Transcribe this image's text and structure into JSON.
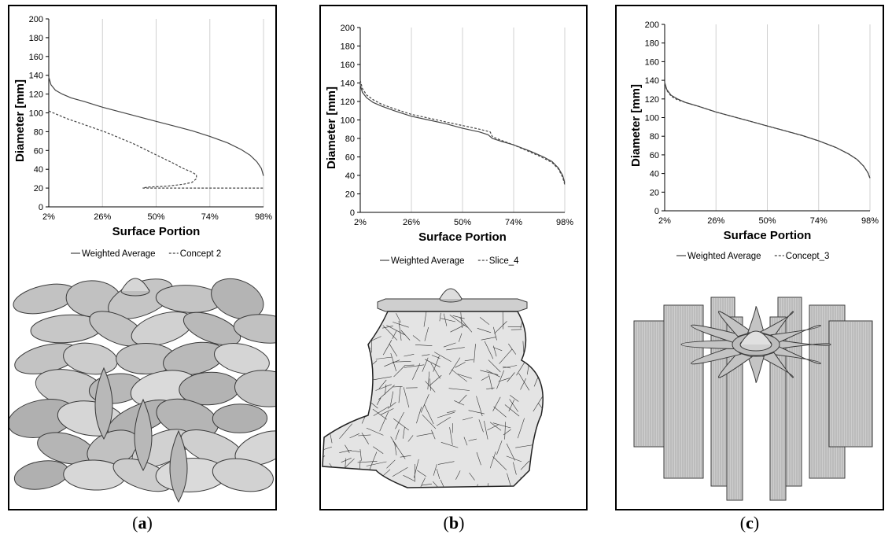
{
  "captions": [
    {
      "open": "(",
      "letter": "a",
      "close": ")"
    },
    {
      "open": "(",
      "letter": "b",
      "close": ")"
    },
    {
      "open": "(",
      "letter": "c",
      "close": ")"
    }
  ],
  "colors": {
    "line": "#444444",
    "grid": "#d0d0d0",
    "axis": "#000000",
    "render_fill": "#c9c9c9",
    "render_edge": "#3a3a3a"
  },
  "chart_data": [
    {
      "type": "line",
      "title": "",
      "xlabel": "Surface Portion",
      "ylabel": "Diameter [mm]",
      "x_ticks": [
        "2%",
        "26%",
        "50%",
        "74%",
        "98%"
      ],
      "x_range": [
        2,
        98
      ],
      "ylim": [
        0,
        200
      ],
      "y_ticks": [
        0,
        20,
        40,
        60,
        80,
        100,
        120,
        140,
        160,
        180,
        200
      ],
      "grid": "vertical",
      "legend_position": "bottom",
      "illustration": "ellipsoid-petals-render",
      "series": [
        {
          "name": "Weighted Average",
          "style": "solid",
          "points": [
            [
              2,
              138
            ],
            [
              3,
              130
            ],
            [
              5,
              124
            ],
            [
              8,
              120
            ],
            [
              12,
              116
            ],
            [
              18,
              112
            ],
            [
              26,
              106
            ],
            [
              34,
              101
            ],
            [
              42,
              96
            ],
            [
              50,
              91
            ],
            [
              58,
              86
            ],
            [
              66,
              81
            ],
            [
              74,
              75
            ],
            [
              82,
              68
            ],
            [
              88,
              61
            ],
            [
              92,
              55
            ],
            [
              95,
              48
            ],
            [
              97,
              41
            ],
            [
              98,
              33
            ]
          ]
        },
        {
          "name": "Concept 2",
          "style": "dashed",
          "points": [
            [
              2,
              102
            ],
            [
              6,
              98
            ],
            [
              10,
              94
            ],
            [
              16,
              89
            ],
            [
              22,
              84
            ],
            [
              28,
              79
            ],
            [
              34,
              73
            ],
            [
              40,
              67
            ],
            [
              46,
              60
            ],
            [
              52,
              53
            ],
            [
              58,
              46
            ],
            [
              62,
              41
            ],
            [
              66,
              37
            ],
            [
              68,
              34
            ],
            [
              68,
              30
            ],
            [
              66,
              26
            ],
            [
              62,
              24
            ],
            [
              55,
              22
            ],
            [
              46,
              21
            ],
            [
              44,
              20
            ],
            [
              98,
              20
            ]
          ]
        }
      ]
    },
    {
      "type": "line",
      "title": "",
      "xlabel": "Surface Portion",
      "ylabel": "Diameter [mm]",
      "x_ticks": [
        "2%",
        "26%",
        "50%",
        "74%",
        "98%"
      ],
      "x_range": [
        2,
        98
      ],
      "ylim": [
        0,
        200
      ],
      "y_ticks": [
        0,
        20,
        40,
        60,
        80,
        100,
        120,
        140,
        160,
        180,
        200
      ],
      "grid": "vertical",
      "legend_position": "bottom",
      "illustration": "mesh-stump-render",
      "series": [
        {
          "name": "Weighted Average",
          "style": "solid",
          "points": [
            [
              2,
              138
            ],
            [
              3,
              130
            ],
            [
              5,
              124
            ],
            [
              8,
              119
            ],
            [
              12,
              115
            ],
            [
              18,
              110
            ],
            [
              26,
              104
            ],
            [
              34,
              100
            ],
            [
              42,
              96
            ],
            [
              50,
              91
            ],
            [
              58,
              87
            ],
            [
              62,
              84
            ],
            [
              64,
              80
            ],
            [
              68,
              77
            ],
            [
              74,
              73
            ],
            [
              82,
              66
            ],
            [
              88,
              60
            ],
            [
              92,
              55
            ],
            [
              95,
              48
            ],
            [
              97,
              40
            ],
            [
              98,
              32
            ]
          ]
        },
        {
          "name": "Slice_4",
          "style": "dashed",
          "points": [
            [
              2,
              143
            ],
            [
              3,
              134
            ],
            [
              5,
              127
            ],
            [
              8,
              122
            ],
            [
              12,
              117
            ],
            [
              18,
              112
            ],
            [
              26,
              106
            ],
            [
              34,
              102
            ],
            [
              42,
              98
            ],
            [
              50,
              94
            ],
            [
              58,
              90
            ],
            [
              63,
              87
            ],
            [
              64,
              82
            ],
            [
              68,
              78
            ],
            [
              74,
              73
            ],
            [
              80,
              67
            ],
            [
              86,
              61
            ],
            [
              92,
              54
            ],
            [
              95,
              47
            ],
            [
              97,
              38
            ],
            [
              98,
              30
            ]
          ]
        }
      ]
    },
    {
      "type": "line",
      "title": "",
      "xlabel": "Surface Portion",
      "ylabel": "Diameter [mm]",
      "x_ticks": [
        "2%",
        "26%",
        "50%",
        "74%",
        "98%"
      ],
      "x_range": [
        2,
        98
      ],
      "ylim": [
        0,
        200
      ],
      "y_ticks": [
        0,
        20,
        40,
        60,
        80,
        100,
        120,
        140,
        160,
        180,
        200
      ],
      "grid": "vertical",
      "legend_position": "bottom",
      "illustration": "star-fin-render",
      "series": [
        {
          "name": "Weighted Average",
          "style": "solid",
          "points": [
            [
              2,
              138
            ],
            [
              3,
              130
            ],
            [
              5,
              124
            ],
            [
              8,
              120
            ],
            [
              12,
              116
            ],
            [
              18,
              112
            ],
            [
              26,
              106
            ],
            [
              34,
              101
            ],
            [
              42,
              96
            ],
            [
              50,
              91
            ],
            [
              58,
              86
            ],
            [
              66,
              81
            ],
            [
              74,
              75
            ],
            [
              82,
              68
            ],
            [
              88,
              61
            ],
            [
              92,
              55
            ],
            [
              95,
              48
            ],
            [
              97,
              41
            ],
            [
              98,
              35
            ]
          ]
        },
        {
          "name": "Concept_3",
          "style": "dashed",
          "points": [
            [
              2,
              137
            ],
            [
              3,
              129
            ],
            [
              5,
              123
            ],
            [
              8,
              119
            ],
            [
              12,
              116
            ],
            [
              18,
              112
            ],
            [
              26,
              106
            ],
            [
              34,
              101
            ],
            [
              42,
              96
            ],
            [
              50,
              91
            ],
            [
              58,
              86
            ],
            [
              66,
              81
            ],
            [
              74,
              75
            ],
            [
              82,
              68
            ],
            [
              88,
              61
            ],
            [
              92,
              55
            ],
            [
              95,
              48
            ],
            [
              97,
              41
            ],
            [
              98,
              35
            ]
          ]
        }
      ]
    }
  ]
}
